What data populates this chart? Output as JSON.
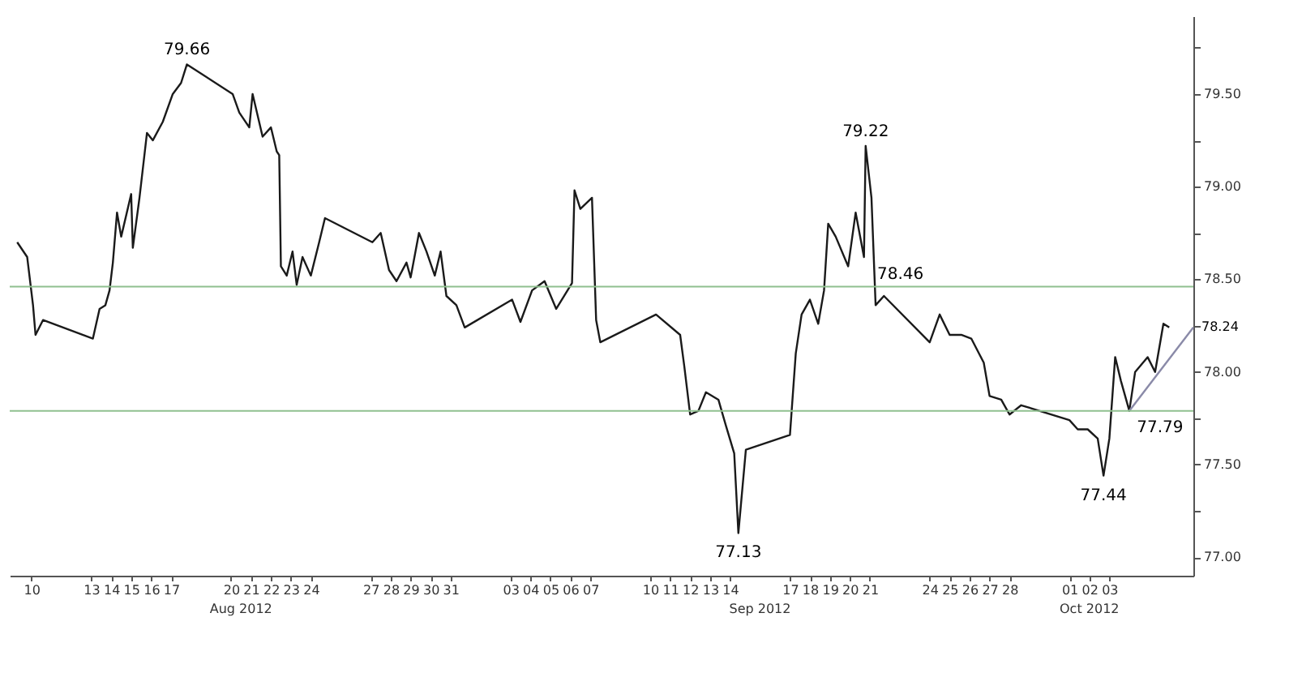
{
  "chart_data": {
    "type": "line",
    "xlim": [
      "2012-08-08T22:00",
      "2012-10-07T05:00"
    ],
    "ylim": [
      76.9,
      79.92
    ],
    "xticks": [
      {
        "value": "2012-08-10",
        "label": "10"
      },
      {
        "value": "2012-08-13",
        "label": "13"
      },
      {
        "value": "2012-08-14",
        "label": "14"
      },
      {
        "value": "2012-08-15",
        "label": "15"
      },
      {
        "value": "2012-08-16",
        "label": "16"
      },
      {
        "value": "2012-08-17",
        "label": "17"
      },
      {
        "value": "2012-08-20",
        "label": "20"
      },
      {
        "value": "2012-08-21",
        "label": "21"
      },
      {
        "value": "2012-08-22",
        "label": "22"
      },
      {
        "value": "2012-08-23",
        "label": "23"
      },
      {
        "value": "2012-08-24",
        "label": "24"
      },
      {
        "value": "2012-08-27",
        "label": "27"
      },
      {
        "value": "2012-08-28",
        "label": "28"
      },
      {
        "value": "2012-08-29",
        "label": "29"
      },
      {
        "value": "2012-08-30",
        "label": "30"
      },
      {
        "value": "2012-08-31",
        "label": "31"
      },
      {
        "value": "2012-09-03",
        "label": "03"
      },
      {
        "value": "2012-09-04",
        "label": "04"
      },
      {
        "value": "2012-09-05",
        "label": "05"
      },
      {
        "value": "2012-09-06",
        "label": "06"
      },
      {
        "value": "2012-09-07",
        "label": "07"
      },
      {
        "value": "2012-09-10",
        "label": "10"
      },
      {
        "value": "2012-09-11",
        "label": "11"
      },
      {
        "value": "2012-09-12",
        "label": "12"
      },
      {
        "value": "2012-09-13",
        "label": "13"
      },
      {
        "value": "2012-09-14",
        "label": "14"
      },
      {
        "value": "2012-09-17",
        "label": "17"
      },
      {
        "value": "2012-09-18",
        "label": "18"
      },
      {
        "value": "2012-09-19",
        "label": "19"
      },
      {
        "value": "2012-09-20",
        "label": "20"
      },
      {
        "value": "2012-09-21",
        "label": "21"
      },
      {
        "value": "2012-09-24",
        "label": "24"
      },
      {
        "value": "2012-09-25",
        "label": "25"
      },
      {
        "value": "2012-09-26",
        "label": "26"
      },
      {
        "value": "2012-09-27",
        "label": "27"
      },
      {
        "value": "2012-09-28",
        "label": "28"
      },
      {
        "value": "2012-10-01",
        "label": "01"
      },
      {
        "value": "2012-10-02",
        "label": "02"
      },
      {
        "value": "2012-10-03",
        "label": "03"
      }
    ],
    "yticks": [
      {
        "value": 77,
        "label": "77.00"
      },
      {
        "value": 77.25,
        "label": null
      },
      {
        "value": 77.5,
        "label": "77.50"
      },
      {
        "value": 77.75,
        "label": null
      },
      {
        "value": 78,
        "label": "78.00"
      },
      {
        "value": 78.25,
        "label": null
      },
      {
        "value": 78.5,
        "label": "78.50"
      },
      {
        "value": 78.75,
        "label": null
      },
      {
        "value": 79,
        "label": "79.00"
      },
      {
        "value": 79.25,
        "label": null
      },
      {
        "value": 79.5,
        "label": "79.50"
      },
      {
        "value": 79.75,
        "label": null
      }
    ],
    "grid": false,
    "marker": "none",
    "line_style": "solid",
    "series": [
      {
        "color": "#1a1a1a",
        "x": [
          "2012-08-09T07:00",
          "2012-08-09T19:00",
          "2012-08-10T02:00",
          "2012-08-10T05:00",
          "2012-08-10T14:00",
          "2012-08-13T02:00",
          "2012-08-13T10:00",
          "2012-08-13T17:00",
          "2012-08-13T22:00",
          "2012-08-14T02:00",
          "2012-08-14T07:00",
          "2012-08-14T12:00",
          "2012-08-15T00:00",
          "2012-08-15T02:00",
          "2012-08-15T10:00",
          "2012-08-15T19:00",
          "2012-08-16T02:00",
          "2012-08-16T14:00",
          "2012-08-17T02:00",
          "2012-08-17T12:00",
          "2012-08-17T19:00",
          "2012-08-20T02:00",
          "2012-08-20T10:00",
          "2012-08-20T22:00",
          "2012-08-21T02:00",
          "2012-08-21T14:00",
          "2012-08-22T00:00",
          "2012-08-22T07:00",
          "2012-08-22T10:00",
          "2012-08-22T12:00",
          "2012-08-22T19:00",
          "2012-08-23T02:00",
          "2012-08-23T07:00",
          "2012-08-23T14:00",
          "2012-08-24T00:00",
          "2012-08-24T10:00",
          "2012-08-24T17:00",
          "2012-08-27T02:00",
          "2012-08-27T12:00",
          "2012-08-27T22:00",
          "2012-08-28T07:00",
          "2012-08-28T19:00",
          "2012-08-29T00:00",
          "2012-08-29T10:00",
          "2012-08-29T19:00",
          "2012-08-30T05:00",
          "2012-08-30T12:00",
          "2012-08-30T19:00",
          "2012-08-31T07:00",
          "2012-08-31T17:00",
          "2012-09-03T02:00",
          "2012-09-03T12:00",
          "2012-09-04T02:00",
          "2012-09-04T17:00",
          "2012-09-05T07:00",
          "2012-09-06T02:00",
          "2012-09-06T05:00",
          "2012-09-06T12:00",
          "2012-09-07T02:00",
          "2012-09-07T07:00",
          "2012-09-07T12:00",
          "2012-09-10T07:00",
          "2012-09-11T12:00",
          "2012-09-11T17:00",
          "2012-09-12T00:00",
          "2012-09-12T10:00",
          "2012-09-12T19:00",
          "2012-09-13T10:00",
          "2012-09-13T19:00",
          "2012-09-14T05:00",
          "2012-09-14T10:00",
          "2012-09-14T19:00",
          "2012-09-17T00:00",
          "2012-09-17T07:00",
          "2012-09-17T14:00",
          "2012-09-18T00:00",
          "2012-09-18T10:00",
          "2012-09-18T17:00",
          "2012-09-18T22:00",
          "2012-09-19T07:00",
          "2012-09-19T22:00",
          "2012-09-20T07:00",
          "2012-09-20T17:00",
          "2012-09-20T19:00",
          "2012-09-21T02:00",
          "2012-09-21T07:00",
          "2012-09-21T17:00",
          "2012-09-24T00:00",
          "2012-09-24T12:00",
          "2012-09-25T00:00",
          "2012-09-25T14:00",
          "2012-09-26T02:00",
          "2012-09-26T17:00",
          "2012-09-27T00:00",
          "2012-09-27T14:00",
          "2012-09-28T00:00",
          "2012-09-28T14:00",
          "2012-10-01T00:00",
          "2012-10-01T10:00",
          "2012-10-01T22:00",
          "2012-10-02T10:00",
          "2012-10-02T17:00",
          "2012-10-03T00:00",
          "2012-10-03T07:00",
          "2012-10-03T14:00",
          "2012-10-04T00:00",
          "2012-10-04T07:00",
          "2012-10-04T22:00",
          "2012-10-05T07:00",
          "2012-10-05T17:00",
          "2012-10-06T00:00"
        ],
        "values": [
          78.7,
          78.62,
          78.36,
          78.2,
          78.28,
          78.18,
          78.34,
          78.36,
          78.44,
          78.59,
          78.86,
          78.73,
          78.96,
          78.67,
          78.94,
          79.29,
          79.25,
          79.35,
          79.5,
          79.56,
          79.66,
          79.5,
          79.4,
          79.32,
          79.5,
          79.27,
          79.32,
          79.19,
          79.17,
          78.57,
          78.52,
          78.65,
          78.47,
          78.62,
          78.52,
          78.7,
          78.83,
          78.7,
          78.75,
          78.55,
          78.49,
          78.59,
          78.51,
          78.75,
          78.65,
          78.52,
          78.65,
          78.41,
          78.36,
          78.24,
          78.39,
          78.27,
          78.44,
          78.49,
          78.34,
          78.48,
          78.98,
          78.88,
          78.94,
          78.28,
          78.16,
          78.31,
          78.2,
          78.03,
          77.77,
          77.79,
          77.89,
          77.85,
          77.71,
          77.56,
          77.13,
          77.58,
          77.66,
          78.1,
          78.31,
          78.39,
          78.26,
          78.44,
          78.8,
          78.73,
          78.57,
          78.86,
          78.62,
          79.22,
          78.94,
          78.36,
          78.41,
          78.16,
          78.31,
          78.2,
          78.2,
          78.18,
          78.05,
          77.87,
          77.85,
          77.77,
          77.82,
          77.74,
          77.69,
          77.69,
          77.64,
          77.44,
          77.64,
          78.08,
          77.95,
          77.79,
          78.0,
          78.08,
          78.0,
          78.26,
          78.24
        ]
      },
      {
        "type": "line",
        "color": "#8a8aa8",
        "x": [
          "2012-10-04T00:00",
          "2012-10-07T05:00"
        ],
        "values": [
          77.79,
          78.24
        ]
      }
    ],
    "ref_lines": [
      {
        "axis": "y",
        "value": 78.46,
        "label": "78.46",
        "color": "#8fc08f"
      },
      {
        "axis": "y",
        "value": 77.79,
        "label": "77.79",
        "color": "#8fc08f"
      }
    ],
    "annotations": [
      {
        "text": "79.66",
        "x": "2012-08-17T19:00",
        "y": 79.66
      },
      {
        "text": "79.22",
        "x": "2012-09-20T19:00",
        "y": 79.22
      },
      {
        "text": "77.13",
        "x": "2012-09-14T10:00",
        "y": 77.13
      },
      {
        "text": "77.44",
        "x": "2012-10-02T17:00",
        "y": 77.44
      },
      {
        "text": "78.24",
        "x": "2012-10-07T05:00",
        "y": 78.24
      },
      "Aug 2012",
      "Sep 2012",
      "Oct 2012"
    ]
  }
}
